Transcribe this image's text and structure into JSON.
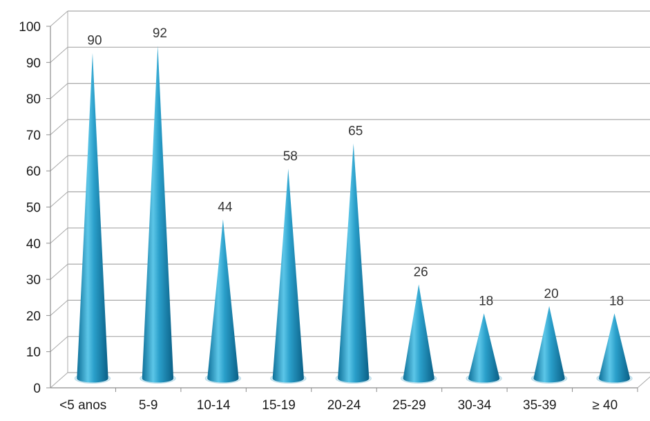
{
  "chart_data": {
    "type": "bar",
    "style": "3d-cone",
    "categories": [
      "<5 anos",
      "5-9",
      "10-14",
      "15-19",
      "20-24",
      "25-29",
      "30-34",
      "35-39",
      "≥ 40"
    ],
    "values": [
      90,
      92,
      44,
      58,
      65,
      26,
      18,
      20,
      18
    ],
    "data_labels": [
      "90",
      "92",
      "44",
      "58",
      "65",
      "26",
      "18",
      "20",
      "18"
    ],
    "y_ticks": [
      "0",
      "10",
      "20",
      "30",
      "40",
      "50",
      "60",
      "70",
      "80",
      "90",
      "100"
    ],
    "ylim": [
      0,
      100
    ],
    "title": "",
    "xlabel": "",
    "ylabel": "",
    "grid": true,
    "legend": "none",
    "colors": {
      "cone_light": "#7fd3ee",
      "cone_mid": "#2a9fca",
      "cone_dark": "#0d6f98",
      "grid": "#a8a8a8",
      "axis": "#8c8c8c"
    }
  }
}
